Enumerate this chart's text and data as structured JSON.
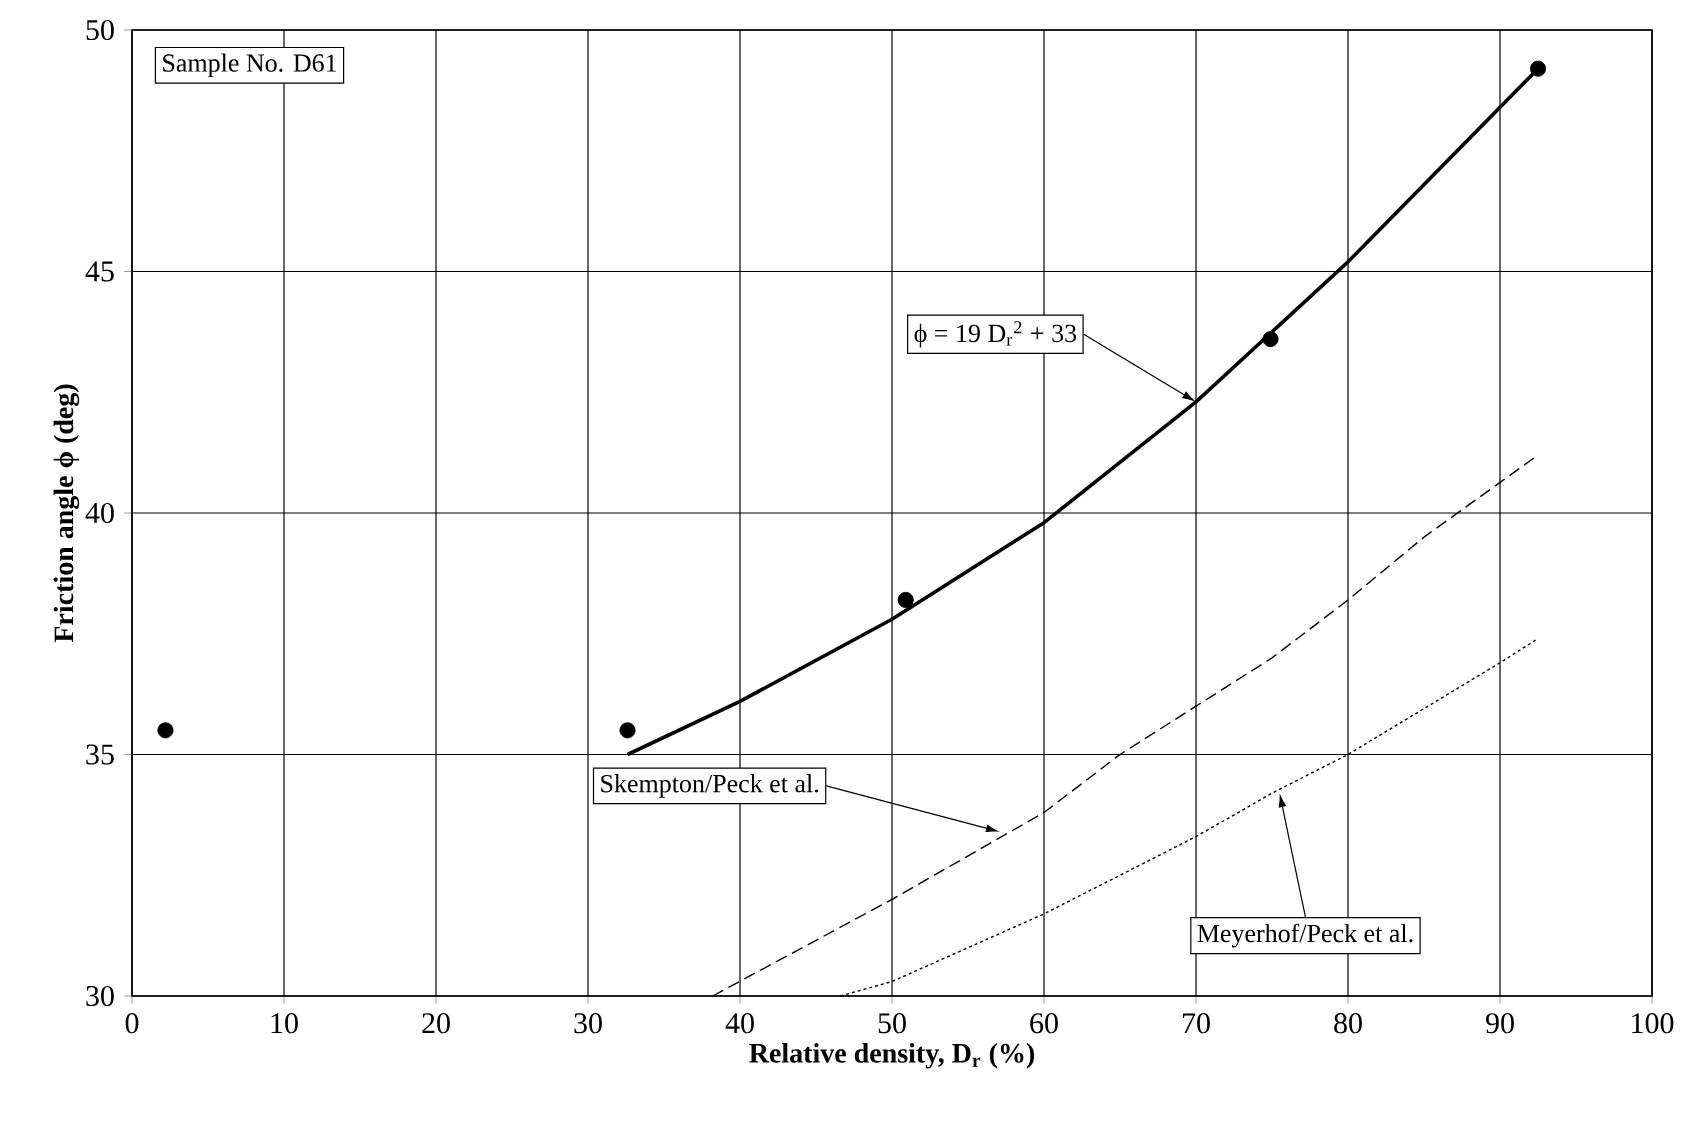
{
  "chart_data": {
    "type": "scatter",
    "xlabel": "Relative density, D$_{r}$ (%)",
    "ylabel": "Friction angle ϕ (deg)",
    "xlim": [
      0,
      100
    ],
    "ylim": [
      30,
      50
    ],
    "xticks": [
      0,
      10,
      20,
      30,
      40,
      50,
      60,
      70,
      80,
      90,
      100
    ],
    "yticks": [
      30,
      35,
      40,
      45,
      50
    ],
    "grid": true,
    "series": [
      {
        "marker": "circle",
        "color": "#000000",
        "x": [
          2.2,
          32.6,
          50.9,
          74.9,
          92.5
        ],
        "values": [
          35.5,
          35.5,
          38.2,
          43.6,
          49.2
        ]
      },
      {
        "type": "line",
        "line_style": "solid",
        "color": "#000000",
        "x": [
          32.6,
          40,
          50,
          60,
          70,
          80,
          92.5
        ],
        "values": [
          35.0,
          36.1,
          37.8,
          39.8,
          42.3,
          45.2,
          49.2
        ]
      },
      {
        "type": "line",
        "line_style": "dashed",
        "color": "#000000",
        "x": [
          38.2,
          50,
          60,
          65,
          70,
          75,
          80,
          85,
          92.5
        ],
        "values": [
          30.0,
          32.0,
          33.8,
          35.0,
          36.0,
          37.0,
          38.2,
          39.5,
          41.2
        ]
      },
      {
        "type": "line",
        "line_style": "dotted",
        "color": "#000000",
        "x": [
          46.6,
          50,
          60,
          70,
          75,
          80,
          90,
          92.5
        ],
        "values": [
          30.0,
          30.3,
          31.7,
          33.3,
          34.2,
          35.0,
          36.9,
          37.4
        ]
      }
    ],
    "annotations": [
      "Sample No. D61",
      {
        "text": "ϕ = 19 D$_{r}$$^{2}$ + 33",
        "x": 70,
        "y": 42.3
      },
      {
        "text": "Skempton/Peck et al.",
        "x": 57.1,
        "y": 33.4
      },
      {
        "text": "Meyerhof/Peck et al.",
        "x": 75.5,
        "y": 34.2
      }
    ]
  }
}
